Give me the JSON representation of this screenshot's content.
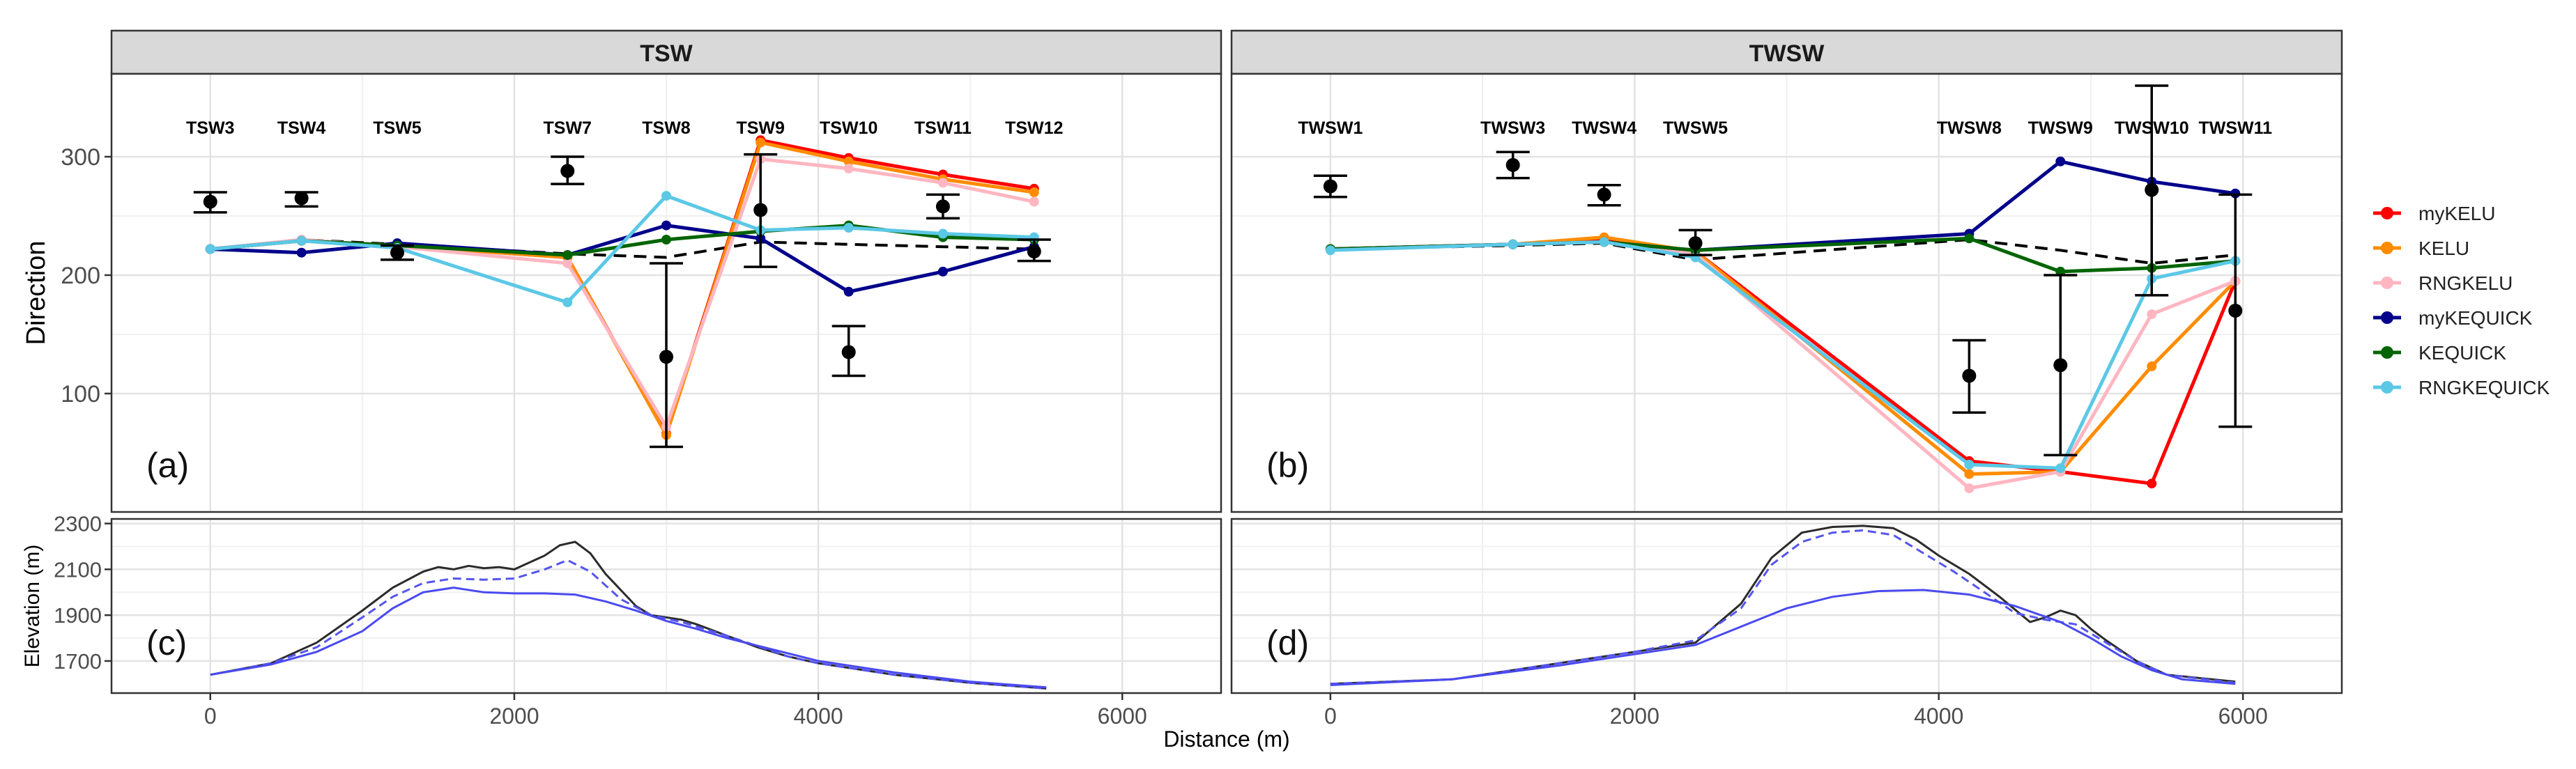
{
  "chart_data": {
    "type": "line",
    "x_axis": {
      "label": "Distance (m)",
      "range": [
        -650,
        6650
      ],
      "ticks": [
        0,
        2000,
        4000,
        6000
      ]
    },
    "legend": {
      "placement": "right",
      "items": [
        {
          "name": "myKELU",
          "color": "#ff0000"
        },
        {
          "name": "KELU",
          "color": "#ff8c00"
        },
        {
          "name": "RNGKELU",
          "color": "#ffb6c1"
        },
        {
          "name": "myKEQUICK",
          "color": "#00008b"
        },
        {
          "name": "KEQUICK",
          "color": "#006400"
        },
        {
          "name": "RNGKEQUICK",
          "color": "#5bc8e6"
        }
      ]
    },
    "direction_panels": [
      {
        "strip": "TSW",
        "tag": "(a)",
        "y_axis": {
          "label": "Direction",
          "range": [
            0,
            370
          ],
          "ticks": [
            100,
            200,
            300
          ]
        },
        "stations": [
          {
            "name": "TSW3",
            "x": 0
          },
          {
            "name": "TSW4",
            "x": 600
          },
          {
            "name": "TSW5",
            "x": 1230
          },
          {
            "name": "TSW7",
            "x": 2350
          },
          {
            "name": "TSW8",
            "x": 3000
          },
          {
            "name": "TSW9",
            "x": 3620
          },
          {
            "name": "TSW10",
            "x": 4200
          },
          {
            "name": "TSW11",
            "x": 4820
          },
          {
            "name": "TSW12",
            "x": 5420
          }
        ],
        "observations": [
          {
            "x": 0,
            "y": 262,
            "lo": 253,
            "hi": 270
          },
          {
            "x": 600,
            "y": 265,
            "lo": 258,
            "hi": 270
          },
          {
            "x": 1230,
            "y": 219,
            "lo": 213,
            "hi": 225
          },
          {
            "x": 2350,
            "y": 288,
            "lo": 277,
            "hi": 300
          },
          {
            "x": 3000,
            "y": 131,
            "lo": 55,
            "hi": 210
          },
          {
            "x": 3620,
            "y": 255,
            "lo": 207,
            "hi": 302
          },
          {
            "x": 4200,
            "y": 135,
            "lo": 115,
            "hi": 157
          },
          {
            "x": 4820,
            "y": 258,
            "lo": 248,
            "hi": 268
          },
          {
            "x": 5420,
            "y": 220,
            "lo": 212,
            "hi": 230
          }
        ],
        "reference": {
          "x": [
            0,
            600,
            1230,
            2350,
            3000,
            3620,
            4200,
            4820,
            5420
          ],
          "y": [
            222,
            230,
            226,
            218,
            215,
            228,
            226,
            224,
            222
          ]
        },
        "series": [
          {
            "name": "myKELU",
            "x": [
              0,
              600,
              1230,
              2350,
              3000,
              3620,
              4200,
              4820,
              5420
            ],
            "y": [
              222,
              229,
              225,
              215,
              66,
              314,
              299,
              285,
              273
            ]
          },
          {
            "name": "KELU",
            "x": [
              0,
              600,
              1230,
              2350,
              3000,
              3620,
              4200,
              4820,
              5420
            ],
            "y": [
              222,
              229,
              225,
              215,
              65,
              312,
              296,
              281,
              270
            ]
          },
          {
            "name": "RNGKELU",
            "x": [
              0,
              600,
              1230,
              2350,
              3000,
              3620,
              4200,
              4820,
              5420
            ],
            "y": [
              222,
              230,
              224,
              210,
              72,
              298,
              290,
              278,
              262
            ]
          },
          {
            "name": "myKEQUICK",
            "x": [
              0,
              600,
              1230,
              2350,
              3000,
              3620,
              4200,
              4820,
              5420
            ],
            "y": [
              222,
              219,
              227,
              217,
              242,
              231,
              186,
              203,
              224
            ]
          },
          {
            "name": "KEQUICK",
            "x": [
              0,
              600,
              1230,
              2350,
              3000,
              3620,
              4200,
              4820,
              5420
            ],
            "y": [
              222,
              229,
              225,
              217,
              230,
              237,
              242,
              232,
              230
            ]
          },
          {
            "name": "RNGKEQUICK",
            "x": [
              0,
              600,
              1230,
              2350,
              3000,
              3620,
              4200,
              4820,
              5420
            ],
            "y": [
              222,
              229,
              223,
              177,
              267,
              238,
              240,
              235,
              232
            ]
          }
        ]
      },
      {
        "strip": "TWSW",
        "tag": "(b)",
        "y_axis": {
          "label": "Direction",
          "range": [
            0,
            370
          ],
          "ticks": [
            100,
            200,
            300
          ]
        },
        "stations": [
          {
            "name": "TWSW1",
            "x": 0
          },
          {
            "name": "TWSW3",
            "x": 1200
          },
          {
            "name": "TWSW4",
            "x": 1800
          },
          {
            "name": "TWSW5",
            "x": 2400
          },
          {
            "name": "TWSW8",
            "x": 4200
          },
          {
            "name": "TWSW9",
            "x": 4800
          },
          {
            "name": "TWSW10",
            "x": 5400
          },
          {
            "name": "TWSW11",
            "x": 5950
          }
        ],
        "observations": [
          {
            "x": 0,
            "y": 275,
            "lo": 266,
            "hi": 284
          },
          {
            "x": 1200,
            "y": 293,
            "lo": 282,
            "hi": 304
          },
          {
            "x": 1800,
            "y": 268,
            "lo": 259,
            "hi": 276
          },
          {
            "x": 2400,
            "y": 227,
            "lo": 217,
            "hi": 238
          },
          {
            "x": 4200,
            "y": 115,
            "lo": 84,
            "hi": 145
          },
          {
            "x": 4800,
            "y": 124,
            "lo": 48,
            "hi": 200
          },
          {
            "x": 5400,
            "y": 272,
            "lo": 183,
            "hi": 360
          },
          {
            "x": 5950,
            "y": 170,
            "lo": 72,
            "hi": 268
          }
        ],
        "reference": {
          "x": [
            0,
            1200,
            1800,
            2400,
            4200,
            4800,
            5400,
            5950
          ],
          "y": [
            222,
            225,
            227,
            213,
            230,
            221,
            210,
            217
          ]
        },
        "series": [
          {
            "name": "myKELU",
            "x": [
              0,
              1200,
              1800,
              2400,
              4200,
              4800,
              5400,
              5950
            ],
            "y": [
              222,
              226,
              229,
              220,
              43,
              34,
              24,
              195
            ]
          },
          {
            "name": "KELU",
            "x": [
              0,
              1200,
              1800,
              2400,
              4200,
              4800,
              5400,
              5950
            ],
            "y": [
              222,
              226,
              232,
              220,
              32,
              34,
              123,
              195
            ]
          },
          {
            "name": "RNGKELU",
            "x": [
              0,
              1200,
              1800,
              2400,
              4200,
              4800,
              5400,
              5950
            ],
            "y": [
              222,
              226,
              228,
              218,
              20,
              34,
              167,
              195
            ]
          },
          {
            "name": "myKEQUICK",
            "x": [
              0,
              1200,
              1800,
              2400,
              4200,
              4800,
              5400,
              5950
            ],
            "y": [
              222,
              226,
              228,
              221,
              235,
              296,
              279,
              269
            ]
          },
          {
            "name": "KEQUICK",
            "x": [
              0,
              1200,
              1800,
              2400,
              4200,
              4800,
              5400,
              5950
            ],
            "y": [
              222,
              226,
              228,
              221,
              231,
              203,
              206,
              212
            ]
          },
          {
            "name": "RNGKEQUICK",
            "x": [
              0,
              1200,
              1800,
              2400,
              4200,
              4800,
              5400,
              5950
            ],
            "y": [
              221,
              226,
              228,
              215,
              40,
              37,
              197,
              212
            ]
          }
        ]
      }
    ],
    "elevation_panels": [
      {
        "tag": "(c)",
        "y_axis": {
          "label": "Elevation (m)",
          "range": [
            1560,
            2320
          ],
          "ticks": [
            1700,
            1900,
            2100,
            2300
          ]
        },
        "terrain": {
          "x": [
            0,
            400,
            700,
            1000,
            1200,
            1400,
            1500,
            1600,
            1700,
            1800,
            1900,
            2000,
            2100,
            2200,
            2300,
            2400,
            2500,
            2600,
            2700,
            2800,
            2900,
            3000,
            3100,
            3200,
            3400,
            3600,
            3800,
            4000,
            4500,
            5000,
            5500
          ],
          "y": [
            1640,
            1690,
            1780,
            1920,
            2020,
            2090,
            2110,
            2100,
            2115,
            2105,
            2110,
            2100,
            2130,
            2160,
            2205,
            2220,
            2170,
            2080,
            2010,
            1940,
            1900,
            1890,
            1880,
            1860,
            1810,
            1760,
            1720,
            1690,
            1640,
            1605,
            1580
          ]
        },
        "model_dashed": {
          "x": [
            0,
            400,
            700,
            1000,
            1200,
            1400,
            1600,
            1800,
            2000,
            2200,
            2350,
            2500,
            2700,
            2900,
            3100,
            3400,
            3800,
            4000,
            4500,
            5000,
            5500
          ],
          "y": [
            1640,
            1690,
            1760,
            1890,
            1980,
            2040,
            2060,
            2055,
            2060,
            2100,
            2140,
            2090,
            1970,
            1900,
            1870,
            1810,
            1720,
            1690,
            1640,
            1605,
            1580
          ]
        },
        "model_solid": {
          "x": [
            0,
            400,
            700,
            1000,
            1200,
            1400,
            1600,
            1800,
            2000,
            2200,
            2400,
            2600,
            2800,
            3000,
            3200,
            3400,
            3700,
            4000,
            4500,
            5000,
            5500
          ],
          "y": [
            1640,
            1685,
            1740,
            1830,
            1930,
            2000,
            2020,
            2000,
            1995,
            1995,
            1990,
            1960,
            1920,
            1875,
            1840,
            1800,
            1750,
            1700,
            1650,
            1610,
            1585
          ]
        }
      },
      {
        "tag": "(d)",
        "y_axis": {
          "label": "Elevation (m)",
          "range": [
            1560,
            2320
          ],
          "ticks": [
            1700,
            1900,
            2100,
            2300
          ]
        },
        "terrain": {
          "x": [
            0,
            800,
            1500,
            2000,
            2400,
            2700,
            2900,
            3100,
            3300,
            3500,
            3700,
            3850,
            4000,
            4200,
            4400,
            4600,
            4700,
            4800,
            4900,
            5000,
            5100,
            5300,
            5500,
            5950
          ],
          "y": [
            1600,
            1620,
            1690,
            1740,
            1780,
            1950,
            2150,
            2260,
            2285,
            2290,
            2280,
            2230,
            2160,
            2080,
            1980,
            1870,
            1890,
            1920,
            1900,
            1840,
            1790,
            1700,
            1640,
            1610
          ]
        },
        "model_dashed": {
          "x": [
            0,
            800,
            1500,
            2000,
            2400,
            2700,
            2900,
            3100,
            3300,
            3500,
            3700,
            3900,
            4100,
            4300,
            4500,
            4700,
            4900,
            5100,
            5300,
            5500,
            5950
          ],
          "y": [
            1600,
            1620,
            1690,
            1740,
            1790,
            1930,
            2120,
            2220,
            2260,
            2270,
            2250,
            2170,
            2090,
            2000,
            1910,
            1880,
            1860,
            1780,
            1700,
            1640,
            1605
          ]
        },
        "model_solid": {
          "x": [
            0,
            800,
            1500,
            2000,
            2400,
            2700,
            3000,
            3300,
            3600,
            3900,
            4200,
            4500,
            4800,
            5000,
            5200,
            5400,
            5600,
            5950
          ],
          "y": [
            1595,
            1620,
            1680,
            1730,
            1770,
            1850,
            1930,
            1980,
            2005,
            2010,
            1990,
            1940,
            1870,
            1800,
            1720,
            1660,
            1620,
            1600
          ]
        }
      }
    ]
  }
}
